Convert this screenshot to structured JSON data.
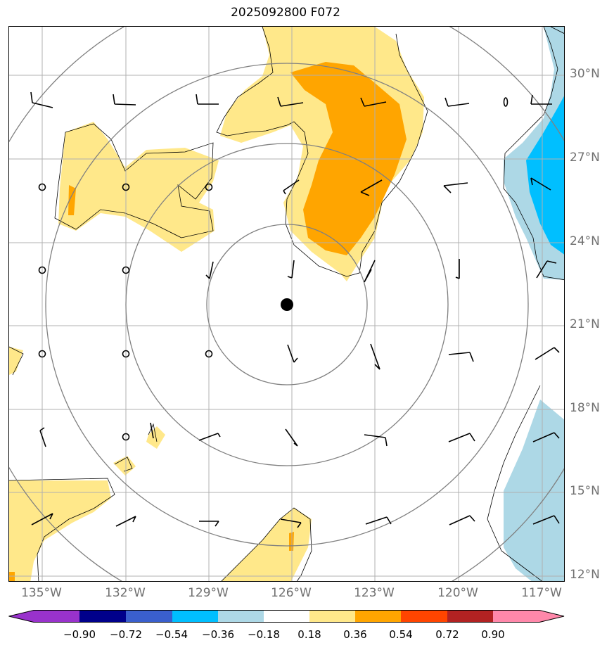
{
  "title": "2025092800 F072",
  "lat_labels": [
    "30°N",
    "27°N",
    "24°N",
    "21°N",
    "18°N",
    "15°N",
    "12°N"
  ],
  "lon_labels": [
    "135°W",
    "132°W",
    "129°W",
    "126°W",
    "123°W",
    "120°W",
    "117°W"
  ],
  "colorbar": {
    "ticks": [
      "−0.90",
      "−0.72",
      "−0.54",
      "−0.36",
      "−0.18",
      "0.18",
      "0.36",
      "0.54",
      "0.72",
      "0.90"
    ],
    "colors": [
      "#9932cc",
      "#00008b",
      "#3a5fcd",
      "#00bfff",
      "#add8e6",
      "#ffffff",
      "#ffe88a",
      "#ffa500",
      "#ff4500",
      "#b22222",
      "#ff88aa"
    ]
  },
  "map": {
    "storm_center": {
      "lat": 21.8,
      "lon": -126.2
    },
    "fill_colors": {
      "light_yellow": "#ffe88a",
      "orange": "#ffa500",
      "light_blue": "#add8e6",
      "deep_sky_blue": "#00bfff"
    },
    "grid": true
  }
}
